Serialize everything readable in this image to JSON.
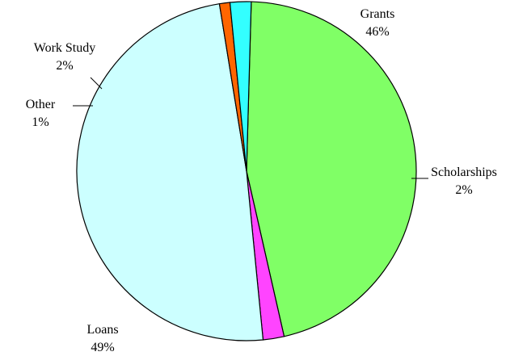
{
  "chart_data": {
    "type": "pie",
    "title": "",
    "slices": [
      {
        "name": "Grants",
        "value": 46,
        "value_label": "46%",
        "color": "#80ff66"
      },
      {
        "name": "Scholarships",
        "value": 2,
        "value_label": "2%",
        "color": "#ff44ff"
      },
      {
        "name": "Loans",
        "value": 49,
        "value_label": "49%",
        "color": "#ccffff"
      },
      {
        "name": "Other",
        "value": 1,
        "value_label": "1%",
        "color": "#ff6600"
      },
      {
        "name": "Work Study",
        "value": 2,
        "value_label": "2%",
        "color": "#33ffff"
      }
    ],
    "legend": "none"
  }
}
